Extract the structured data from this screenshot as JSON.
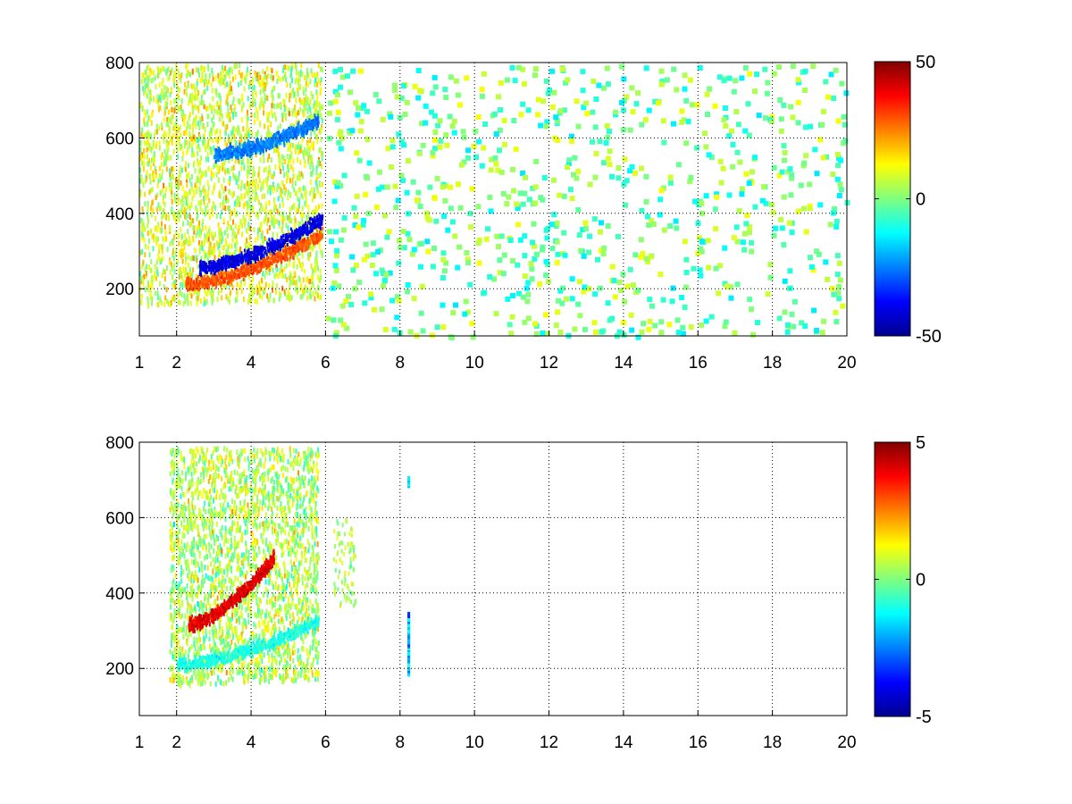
{
  "chart_data": [
    {
      "type": "heatmap",
      "panel": "top",
      "title": "",
      "xlabel": "",
      "ylabel": "",
      "xlim": [
        1,
        20
      ],
      "ylim": [
        75,
        800
      ],
      "x_ticks": [
        1,
        2,
        4,
        6,
        8,
        10,
        12,
        14,
        16,
        18,
        20
      ],
      "x_tick_labels": [
        "1",
        "2",
        "4",
        "6",
        "8",
        "10",
        "12",
        "14",
        "16",
        "18",
        "20"
      ],
      "y_ticks": [
        200,
        400,
        600,
        800
      ],
      "y_tick_labels": [
        "200",
        "400",
        "600",
        "800"
      ],
      "grid": true,
      "colormap": "jet",
      "clim": [
        -50,
        50
      ],
      "colorbar_ticks": [
        -50,
        0,
        50
      ],
      "colorbar_tick_labels": [
        "-50",
        "0",
        "50"
      ],
      "features": [
        {
          "kind": "dense_field",
          "x_range": [
            1.0,
            5.9
          ],
          "y_range": [
            160,
            800
          ],
          "mean_value": 8
        },
        {
          "kind": "curved_band",
          "x_range": [
            2.2,
            5.9
          ],
          "y_start": 215,
          "y_end": 350,
          "value": 30,
          "description_only": false
        },
        {
          "kind": "curved_band",
          "x_range": [
            2.6,
            5.9
          ],
          "y_start": 260,
          "y_end": 390,
          "value": -40
        },
        {
          "kind": "curved_band",
          "x_range": [
            3.0,
            5.8
          ],
          "y_start": 560,
          "y_end": 650,
          "value": -25
        },
        {
          "kind": "sparse_noise",
          "x_range": [
            6.0,
            20.0
          ],
          "y_range": [
            75,
            800
          ],
          "value_range": [
            -15,
            12
          ]
        }
      ]
    },
    {
      "type": "heatmap",
      "panel": "bottom",
      "title": "",
      "xlabel": "",
      "ylabel": "",
      "xlim": [
        1,
        20
      ],
      "ylim": [
        75,
        800
      ],
      "x_ticks": [
        1,
        2,
        4,
        6,
        8,
        10,
        12,
        14,
        16,
        18,
        20
      ],
      "x_tick_labels": [
        "1",
        "2",
        "4",
        "6",
        "8",
        "10",
        "12",
        "14",
        "16",
        "18",
        "20"
      ],
      "y_ticks": [
        200,
        400,
        600,
        800
      ],
      "y_tick_labels": [
        "200",
        "400",
        "600",
        "800"
      ],
      "grid": true,
      "colormap": "jet",
      "clim": [
        -5,
        5
      ],
      "colorbar_ticks": [
        -5,
        0,
        5
      ],
      "colorbar_tick_labels": [
        "-5",
        "0",
        "5"
      ],
      "features": [
        {
          "kind": "dense_field",
          "x_range": [
            1.8,
            5.8
          ],
          "y_range": [
            160,
            790
          ],
          "mean_value": 0.5
        },
        {
          "kind": "curved_band",
          "x_range": [
            2.3,
            4.6
          ],
          "y_start": 320,
          "y_end": 500,
          "value": 4
        },
        {
          "kind": "curved_band",
          "x_range": [
            2.0,
            5.8
          ],
          "y_start": 215,
          "y_end": 330,
          "value": -1
        },
        {
          "kind": "patch",
          "x_range": [
            6.2,
            6.8
          ],
          "y_range": [
            370,
            600
          ],
          "value": 0.5
        },
        {
          "kind": "column",
          "x": 8.2,
          "y_range": [
            190,
            350
          ],
          "value": -2
        },
        {
          "kind": "column",
          "x": 8.2,
          "y_range": [
            690,
            710
          ],
          "value": -2
        }
      ]
    }
  ]
}
